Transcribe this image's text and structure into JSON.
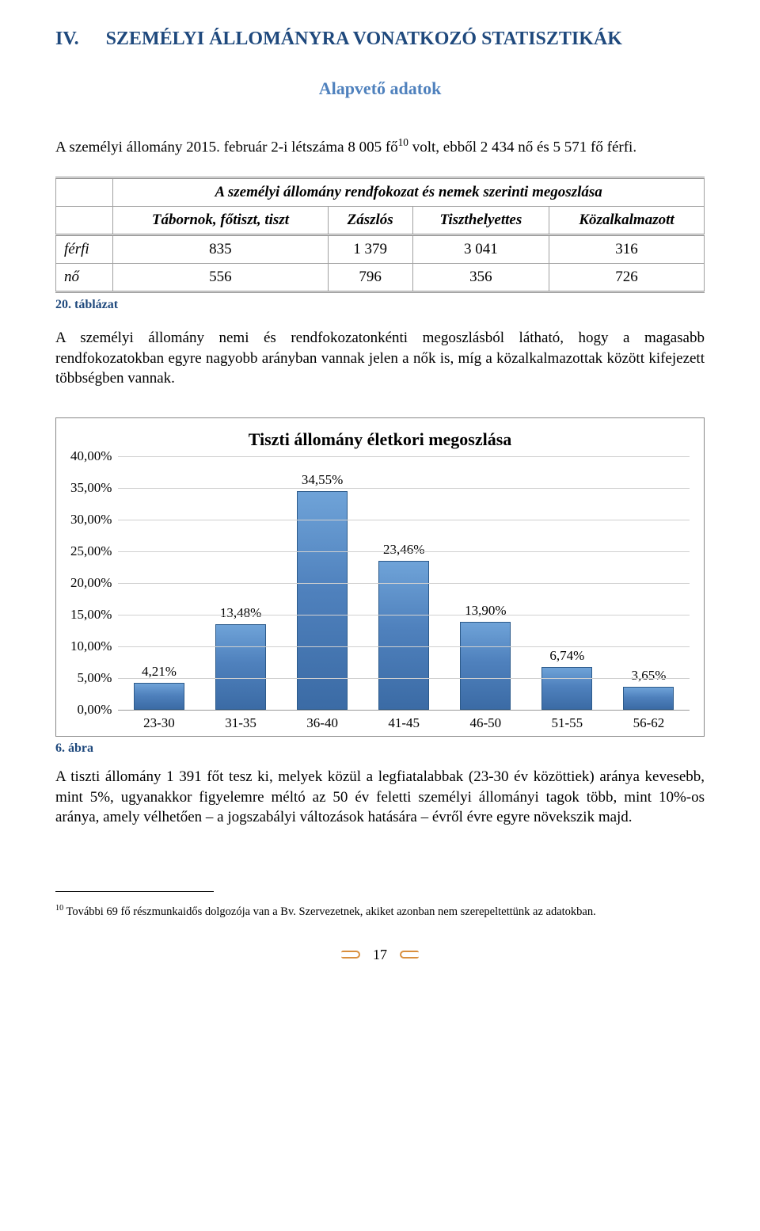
{
  "heading": {
    "roman": "IV.",
    "text": "SZEMÉLYI ÁLLOMÁNYRA VONATKOZÓ STATISZTIKÁK"
  },
  "subheading": "Alapvető adatok",
  "intro_paragraph": {
    "prefix": "A személyi állomány 2015. február 2-i létszáma 8 005 fő",
    "sup": "10",
    "suffix": " volt, ebből 2 434 nő és 5 571 fő férfi."
  },
  "table": {
    "title": "A személyi állomány rendfokozat és nemek szerinti megoszlása",
    "columns": [
      "Tábornok, főtiszt, tiszt",
      "Zászlós",
      "Tiszthelyettes",
      "Közalkalmazott"
    ],
    "rows": [
      {
        "label": "férfi",
        "cells": [
          "835",
          "1 379",
          "3 041",
          "316"
        ]
      },
      {
        "label": "nő",
        "cells": [
          "556",
          "796",
          "356",
          "726"
        ]
      }
    ],
    "caption": "20. táblázat"
  },
  "mid_paragraph": "A személyi állomány nemi és rendfokozatonkénti megoszlásból látható, hogy a magasabb rendfokozatokban egyre nagyobb arányban vannak jelen a nők is, míg a közalkalmazottak között kifejezett többségben vannak.",
  "chart": {
    "title": "Tiszti állomány életkori megoszlása",
    "type": "bar",
    "y_max": 40,
    "y_step": 5,
    "y_ticks": [
      "40,00%",
      "35,00%",
      "30,00%",
      "25,00%",
      "20,00%",
      "15,00%",
      "10,00%",
      "5,00%",
      "0,00%"
    ],
    "categories": [
      "23-30",
      "31-35",
      "36-40",
      "41-45",
      "46-50",
      "51-55",
      "56-62"
    ],
    "values": [
      4.21,
      13.48,
      34.55,
      23.46,
      13.9,
      6.74,
      3.65
    ],
    "labels": [
      "4,21%",
      "13,48%",
      "34,55%",
      "23,46%",
      "13,90%",
      "6,74%",
      "3,65%"
    ],
    "bar_fill_top": "#6fa3d8",
    "bar_fill_mid": "#4f81bd",
    "bar_fill_bottom": "#3b6ba5",
    "bar_border": "#2c5a8a",
    "grid_color": "#d0d0d0",
    "axis_color": "#999999",
    "chart_border": "#888888",
    "background": "#ffffff",
    "title_fontsize": 22,
    "tick_fontsize": 17,
    "caption": "6. ábra"
  },
  "after_chart_paragraph": "A tiszti állomány 1 391 főt tesz ki, melyek közül a legfiatalabbak (23-30 év közöttiek) aránya kevesebb, mint 5%, ugyanakkor figyelemre méltó az 50 év feletti személyi állományi tagok több, mint 10%-os aránya, amely vélhetően – a jogszabályi változások hatására – évről évre egyre növekszik majd.",
  "footnote": {
    "sup": "10",
    "text": " További 69 fő részmunkaidős dolgozója van a Bv. Szervezetnek, akiket azonban nem szerepeltettünk az adatokban."
  },
  "page_number": "17"
}
